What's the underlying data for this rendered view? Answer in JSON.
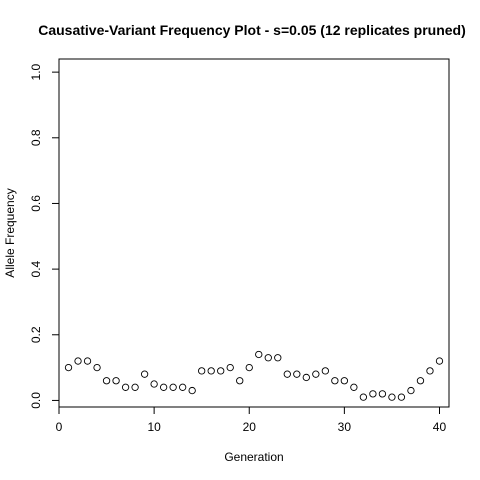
{
  "chart_data": {
    "type": "scatter",
    "title": "Causative-Variant Frequency Plot - s=0.05 (12 replicates pruned)",
    "xlabel": "Generation",
    "ylabel": "Allele Frequency",
    "xlim": [
      0,
      41
    ],
    "ylim": [
      -0.02,
      1.04
    ],
    "x_ticks": [
      0,
      10,
      20,
      30,
      40
    ],
    "y_ticks": [
      0.0,
      0.2,
      0.4,
      0.6,
      0.8,
      1.0
    ],
    "x_tick_labels": [
      "0",
      "10",
      "20",
      "30",
      "40"
    ],
    "y_tick_labels": [
      "0.0",
      "0.2",
      "0.4",
      "0.6",
      "0.8",
      "1.0"
    ],
    "grid": false,
    "marker": "open-circle",
    "x": [
      1,
      2,
      3,
      4,
      5,
      6,
      7,
      8,
      9,
      10,
      11,
      12,
      13,
      14,
      15,
      16,
      17,
      18,
      19,
      20,
      21,
      22,
      23,
      24,
      25,
      26,
      27,
      28,
      29,
      30,
      31,
      32,
      33,
      34,
      35,
      36,
      37,
      38,
      39,
      40
    ],
    "y": [
      0.1,
      0.12,
      0.12,
      0.1,
      0.06,
      0.06,
      0.04,
      0.04,
      0.08,
      0.05,
      0.04,
      0.04,
      0.04,
      0.03,
      0.09,
      0.09,
      0.09,
      0.1,
      0.06,
      0.1,
      0.14,
      0.13,
      0.13,
      0.08,
      0.08,
      0.07,
      0.08,
      0.09,
      0.06,
      0.06,
      0.04,
      0.01,
      0.02,
      0.02,
      0.01,
      0.01,
      0.03,
      0.06,
      0.09,
      0.12
    ]
  }
}
